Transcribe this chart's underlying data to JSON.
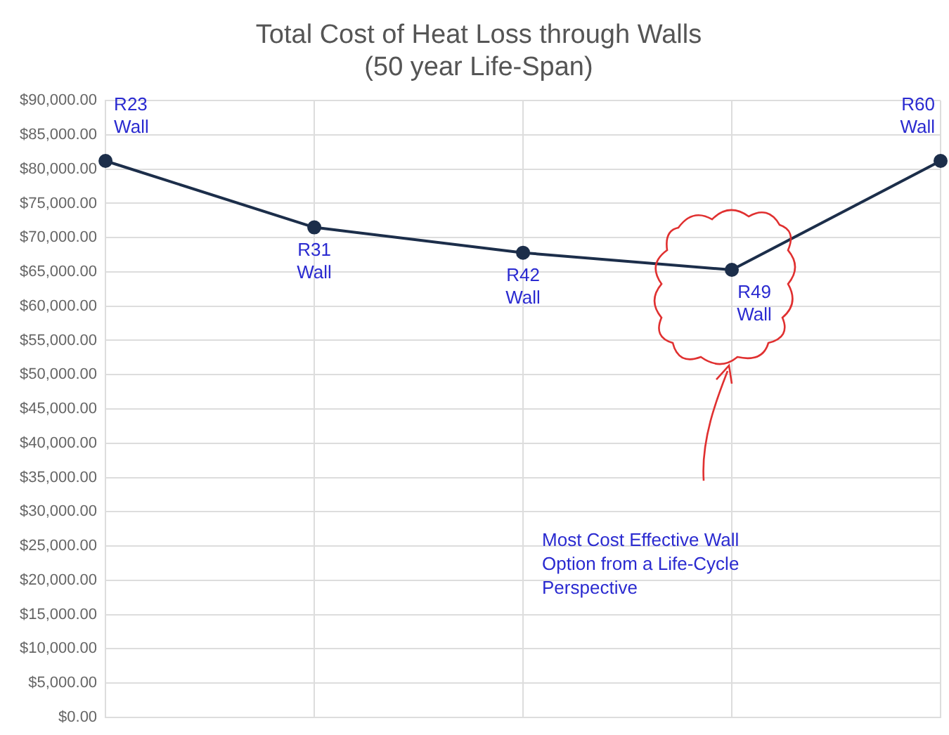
{
  "chart_data": {
    "type": "line",
    "title": [
      "Total Cost of Heat Loss through Walls",
      "(50 year Life-Span)"
    ],
    "categories": [
      null,
      null,
      null,
      null,
      null
    ],
    "series": [
      {
        "color": "#1c2e4a",
        "values": [
          81200,
          71500,
          67800,
          65300,
          81200
        ]
      }
    ],
    "ylim": [
      0,
      90000
    ],
    "yticks": [
      {
        "value": 0,
        "label": "$0.00"
      },
      {
        "value": 5000,
        "label": "$5,000.00"
      },
      {
        "value": 10000,
        "label": "$10,000.00"
      },
      {
        "value": 15000,
        "label": "$15,000.00"
      },
      {
        "value": 20000,
        "label": "$20,000.00"
      },
      {
        "value": 25000,
        "label": "$25,000.00"
      },
      {
        "value": 30000,
        "label": "$30,000.00"
      },
      {
        "value": 35000,
        "label": "$35,000.00"
      },
      {
        "value": 40000,
        "label": "$40,000.00"
      },
      {
        "value": 45000,
        "label": "$45,000.00"
      },
      {
        "value": 50000,
        "label": "$50,000.00"
      },
      {
        "value": 55000,
        "label": "$55,000.00"
      },
      {
        "value": 60000,
        "label": "$60,000.00"
      },
      {
        "value": 65000,
        "label": "$65,000.00"
      },
      {
        "value": 70000,
        "label": "$70,000.00"
      },
      {
        "value": 75000,
        "label": "$75,000.00"
      },
      {
        "value": 80000,
        "label": "$80,000.00"
      },
      {
        "value": 85000,
        "label": "$85,000.00"
      },
      {
        "value": 90000,
        "label": "$90,000.00"
      }
    ],
    "grid": true,
    "legend": false,
    "marker": "circle",
    "tick_labels": "y",
    "annotations": [
      "R23\nWall",
      "R31\nWall",
      "R42\nWall",
      "R49\nWall",
      "R60\nWall",
      "Most Cost Effective Wall\nOption from a Life-Cycle\nPerspective"
    ]
  }
}
